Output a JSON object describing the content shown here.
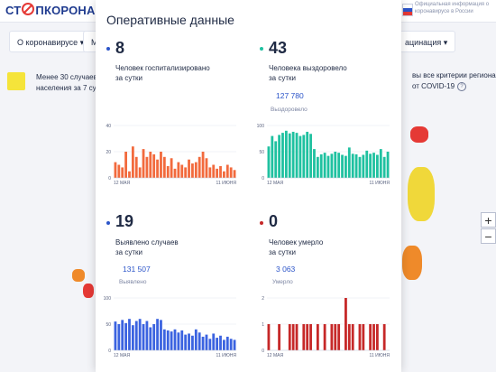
{
  "site": {
    "logo_part1": "СТ",
    "logo_part2": "ПКОРОНАВ",
    "official_note": "Официальная информация о коронавирусе в России"
  },
  "nav": {
    "items": [
      {
        "label": "О коронавирусе",
        "caret": "▾"
      },
      {
        "label": "М"
      },
      {
        "label": "ацинация",
        "caret": "▾"
      }
    ]
  },
  "legend": {
    "color": "#f5e43a",
    "line1": "Менее 30 случаев",
    "line2": "населения за 7 су",
    "right_line1": "вы все критерии региона",
    "right_line2": "от COVID-19",
    "info_icon": "?"
  },
  "map_controls": {
    "zoom_in": "+",
    "zoom_out": "−"
  },
  "panel": {
    "title": "Оперативные данные",
    "stats": [
      {
        "color": "#2c55c9",
        "value": "8",
        "desc_line1": "Человек госпитализировано",
        "desc_line2": "за сутки",
        "total": "",
        "total_label": ""
      },
      {
        "color": "#1fc1a0",
        "value": "43",
        "desc_line1": "Человека выздоровело",
        "desc_line2": "за сутки",
        "total": "127 780",
        "total_label": "Выздоровело"
      },
      {
        "color": "#2c55c9",
        "value": "19",
        "desc_line1": "Выявлено случаев",
        "desc_line2": "за сутки",
        "total": "131 507",
        "total_label": "Выявлено"
      },
      {
        "color": "#c62828",
        "value": "0",
        "desc_line1": "Человек умерло",
        "desc_line2": "за сутки",
        "total": "3 063",
        "total_label": "Умерло"
      }
    ]
  },
  "chart_data": [
    {
      "type": "bar",
      "color": "#f26a3d",
      "x_start": "12 МАЯ",
      "x_end": "11 ИЮНЯ",
      "ylim": [
        0,
        40
      ],
      "yticks": [
        "40",
        "20",
        "0"
      ],
      "values": [
        12,
        10,
        8,
        20,
        5,
        24,
        16,
        8,
        22,
        16,
        20,
        18,
        14,
        20,
        16,
        9,
        15,
        7,
        12,
        10,
        8,
        14,
        11,
        12,
        16,
        20,
        15,
        8,
        10,
        7,
        9,
        5,
        10,
        8,
        6
      ]
    },
    {
      "type": "bar",
      "color": "#1fc1a0",
      "x_start": "12 МАЯ",
      "x_end": "11 ИЮНЯ",
      "ylim": [
        0,
        100
      ],
      "yticks": [
        "100",
        "50",
        "0"
      ],
      "values": [
        60,
        80,
        70,
        82,
        86,
        90,
        85,
        88,
        86,
        80,
        82,
        88,
        84,
        55,
        40,
        45,
        48,
        42,
        46,
        50,
        48,
        44,
        42,
        58,
        46,
        45,
        40,
        44,
        52,
        46,
        48,
        44,
        55,
        40,
        50
      ]
    },
    {
      "type": "bar",
      "color": "#3b63e0",
      "x_start": "12 МАЯ",
      "x_end": "11 ИЮНЯ",
      "ylim": [
        0,
        100
      ],
      "yticks": [
        "100",
        "50",
        "0"
      ],
      "values": [
        55,
        50,
        58,
        52,
        60,
        48,
        56,
        60,
        50,
        56,
        44,
        50,
        60,
        58,
        40,
        38,
        36,
        40,
        34,
        38,
        30,
        32,
        28,
        40,
        34,
        26,
        30,
        22,
        32,
        24,
        28,
        20,
        26,
        22,
        20
      ]
    },
    {
      "type": "bar",
      "color": "#c62828",
      "x_start": "12 МАЯ",
      "x_end": "11 ИЮНЯ",
      "ylim": [
        0,
        2
      ],
      "yticks": [
        "2",
        "1",
        "0"
      ],
      "values": [
        1,
        0,
        0,
        1,
        0,
        0,
        1,
        1,
        1,
        0,
        1,
        1,
        1,
        0,
        1,
        0,
        1,
        0,
        1,
        1,
        1,
        0,
        2,
        1,
        1,
        0,
        1,
        1,
        0,
        1,
        1,
        1,
        0,
        1,
        0
      ]
    }
  ]
}
